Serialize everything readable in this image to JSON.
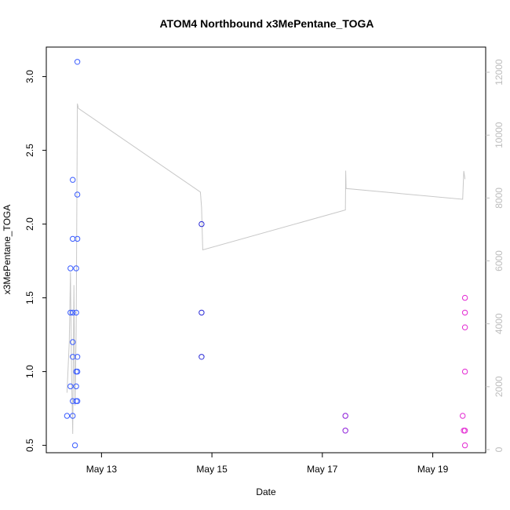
{
  "chart_data": {
    "type": "scatter",
    "title": "ATOM4 Northbound x3MePentane_TOGA",
    "xlabel": "Date",
    "ylabel": "x3MePentane_TOGA",
    "xlim": [
      "2016-05-12T00:00",
      "2016-05-19T23:00"
    ],
    "ylim": [
      0.45,
      3.2
    ],
    "y2lim": [
      -100,
      12800
    ],
    "grid": false,
    "x_ticks": [
      {
        "value": "2016-05-13T00:00",
        "label": "May 13"
      },
      {
        "value": "2016-05-15T00:00",
        "label": "May 15"
      },
      {
        "value": "2016-05-17T00:00",
        "label": "May 17"
      },
      {
        "value": "2016-05-19T00:00",
        "label": "May 19"
      }
    ],
    "y_ticks": [
      0.5,
      1.0,
      1.5,
      2.0,
      2.5,
      3.0
    ],
    "y2_ticks": [
      0,
      2000,
      4000,
      6000,
      8000,
      10000,
      12000
    ],
    "colors": {
      "points_early": "#3a5cff",
      "points_mid": "#2a2ad6",
      "points_may17": "#8a17d8",
      "points_may19": "#e32bd3",
      "altitude_line": "#c8c8c8",
      "axis": "#000000",
      "right_axis": "#bdbdbd"
    },
    "series": [
      {
        "role": "points",
        "color": "#3a5cff",
        "points": [
          {
            "x": "2016-05-12T09:00",
            "y": 0.7
          },
          {
            "x": "2016-05-12T10:30",
            "y": 1.7
          },
          {
            "x": "2016-05-12T10:30",
            "y": 1.4
          },
          {
            "x": "2016-05-12T10:30",
            "y": 0.9
          },
          {
            "x": "2016-05-12T11:30",
            "y": 2.3
          },
          {
            "x": "2016-05-12T11:30",
            "y": 1.9
          },
          {
            "x": "2016-05-12T11:30",
            "y": 1.4
          },
          {
            "x": "2016-05-12T11:30",
            "y": 1.2
          },
          {
            "x": "2016-05-12T11:30",
            "y": 1.1
          },
          {
            "x": "2016-05-12T11:30",
            "y": 0.8
          },
          {
            "x": "2016-05-12T11:30",
            "y": 0.7
          },
          {
            "x": "2016-05-12T12:30",
            "y": 0.5
          },
          {
            "x": "2016-05-12T13:00",
            "y": 1.7
          },
          {
            "x": "2016-05-12T13:00",
            "y": 1.4
          },
          {
            "x": "2016-05-12T13:00",
            "y": 1.0
          },
          {
            "x": "2016-05-12T13:00",
            "y": 0.9
          },
          {
            "x": "2016-05-12T13:00",
            "y": 0.8
          },
          {
            "x": "2016-05-12T13:30",
            "y": 3.1
          },
          {
            "x": "2016-05-12T13:30",
            "y": 2.2
          },
          {
            "x": "2016-05-12T13:30",
            "y": 1.9
          },
          {
            "x": "2016-05-12T13:30",
            "y": 1.1
          },
          {
            "x": "2016-05-12T13:30",
            "y": 1.0
          },
          {
            "x": "2016-05-12T13:30",
            "y": 0.8
          }
        ]
      },
      {
        "role": "points",
        "color": "#2a2ad6",
        "points": [
          {
            "x": "2016-05-14T19:30",
            "y": 2.0
          },
          {
            "x": "2016-05-14T19:30",
            "y": 1.4
          },
          {
            "x": "2016-05-14T19:30",
            "y": 1.1
          }
        ]
      },
      {
        "role": "points",
        "color": "#8a17d8",
        "points": [
          {
            "x": "2016-05-17T10:00",
            "y": 0.7
          },
          {
            "x": "2016-05-17T10:00",
            "y": 0.6
          }
        ]
      },
      {
        "role": "points",
        "color": "#e32bd3",
        "points": [
          {
            "x": "2016-05-19T13:00",
            "y": 0.7
          },
          {
            "x": "2016-05-19T13:30",
            "y": 0.6
          },
          {
            "x": "2016-05-19T14:00",
            "y": 1.5
          },
          {
            "x": "2016-05-19T14:00",
            "y": 1.4
          },
          {
            "x": "2016-05-19T14:00",
            "y": 1.3
          },
          {
            "x": "2016-05-19T14:00",
            "y": 1.0
          },
          {
            "x": "2016-05-19T14:00",
            "y": 0.6
          },
          {
            "x": "2016-05-19T14:00",
            "y": 0.5
          }
        ]
      },
      {
        "role": "line",
        "axis": "right",
        "color": "#c8c8c8",
        "points": [
          {
            "x": "2016-05-12T09:00",
            "y": 1810
          },
          {
            "x": "2016-05-12T10:00",
            "y": 3430
          },
          {
            "x": "2016-05-12T10:30",
            "y": 5650
          },
          {
            "x": "2016-05-12T11:00",
            "y": 2270
          },
          {
            "x": "2016-05-12T11:30",
            "y": 500
          },
          {
            "x": "2016-05-12T12:00",
            "y": 5230
          },
          {
            "x": "2016-05-12T12:30",
            "y": 1400
          },
          {
            "x": "2016-05-12T13:00",
            "y": 3750
          },
          {
            "x": "2016-05-12T13:30",
            "y": 11000
          },
          {
            "x": "2016-05-12T14:00",
            "y": 10850
          },
          {
            "x": "2016-05-14T19:00",
            "y": 8190
          },
          {
            "x": "2016-05-14T19:30",
            "y": 7700
          },
          {
            "x": "2016-05-14T20:00",
            "y": 6350
          },
          {
            "x": "2016-05-17T10:00",
            "y": 7620
          },
          {
            "x": "2016-05-17T10:10",
            "y": 8870
          },
          {
            "x": "2016-05-17T10:20",
            "y": 8300
          },
          {
            "x": "2016-05-19T13:00",
            "y": 7960
          },
          {
            "x": "2016-05-19T13:30",
            "y": 8860
          },
          {
            "x": "2016-05-19T14:00",
            "y": 8600
          }
        ]
      }
    ]
  }
}
